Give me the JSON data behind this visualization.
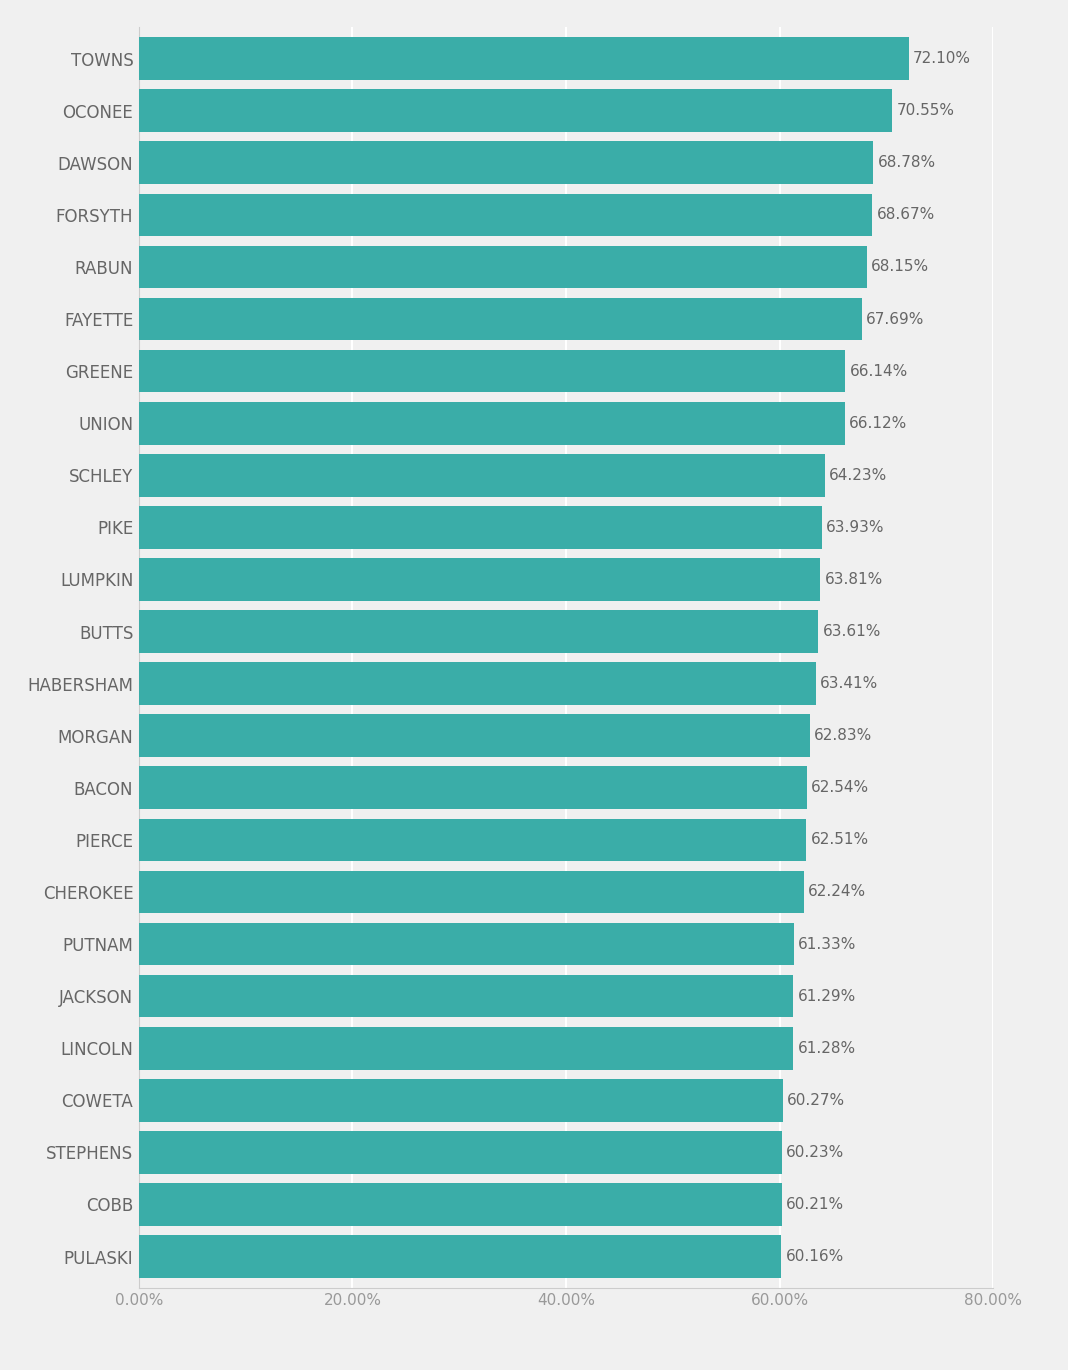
{
  "categories": [
    "TOWNS",
    "OCONEE",
    "DAWSON",
    "FORSYTH",
    "RABUN",
    "FAYETTE",
    "GREENE",
    "UNION",
    "SCHLEY",
    "PIKE",
    "LUMPKIN",
    "BUTTS",
    "HABERSHAM",
    "MORGAN",
    "BACON",
    "PIERCE",
    "CHEROKEE",
    "PUTNAM",
    "JACKSON",
    "LINCOLN",
    "COWETA",
    "STEPHENS",
    "COBB",
    "PULASKI"
  ],
  "values": [
    72.1,
    70.55,
    68.78,
    68.67,
    68.15,
    67.69,
    66.14,
    66.12,
    64.23,
    63.93,
    63.81,
    63.61,
    63.41,
    62.83,
    62.54,
    62.51,
    62.24,
    61.33,
    61.29,
    61.28,
    60.27,
    60.23,
    60.21,
    60.16
  ],
  "bar_color": "#3aada8",
  "background_color": "#f0f0f0",
  "label_color": "#666666",
  "value_color": "#666666",
  "xlabel_color": "#999999",
  "xlim": [
    0,
    80
  ],
  "xticks": [
    0,
    20,
    40,
    60,
    80
  ],
  "xtick_labels": [
    "0.00%",
    "20.00%",
    "40.00%",
    "60.00%",
    "80.00%"
  ],
  "bar_height": 0.82,
  "grid_color": "#ffffff",
  "label_fontsize": 12,
  "value_fontsize": 11,
  "xtick_fontsize": 11
}
